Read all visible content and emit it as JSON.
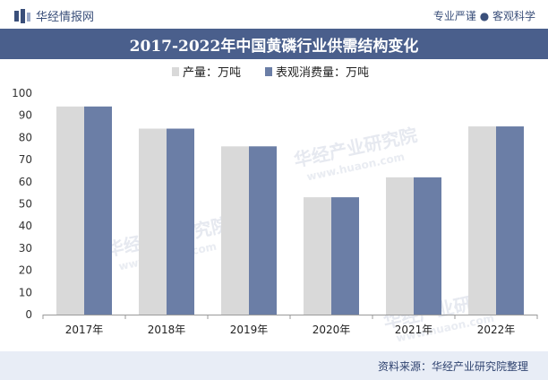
{
  "header": {
    "brand": "华经情报网",
    "tagline": "专业严谨 ● 客观科学"
  },
  "title": "2017-2022年中国黄磷行业供需结构变化",
  "footer": {
    "source": "资料来源：华经产业研究院整理"
  },
  "watermark": {
    "cn": "华经产业研究院",
    "url": "www.huaon.com"
  },
  "colors": {
    "production": "#d9d9d9",
    "consumption": "#6b7ea6",
    "title_bg": "#4a5f8c",
    "footer_bg": "#e8edf6"
  },
  "chart_data": {
    "type": "bar",
    "title": "2017-2022年中国黄磷行业供需结构变化",
    "categories": [
      "2017年",
      "2018年",
      "2019年",
      "2020年",
      "2021年",
      "2022年"
    ],
    "series": [
      {
        "name": "产量：万吨",
        "values": [
          94,
          84,
          76,
          53,
          62,
          85
        ]
      },
      {
        "name": "表观消费量：万吨",
        "values": [
          94,
          84,
          76,
          53,
          62,
          85
        ]
      }
    ],
    "ylim": [
      0,
      100
    ],
    "yticks": [
      0,
      10,
      20,
      30,
      40,
      50,
      60,
      70,
      80,
      90,
      100
    ],
    "xlabel": "",
    "ylabel": "",
    "legend_position": "top-center",
    "grid": false
  }
}
